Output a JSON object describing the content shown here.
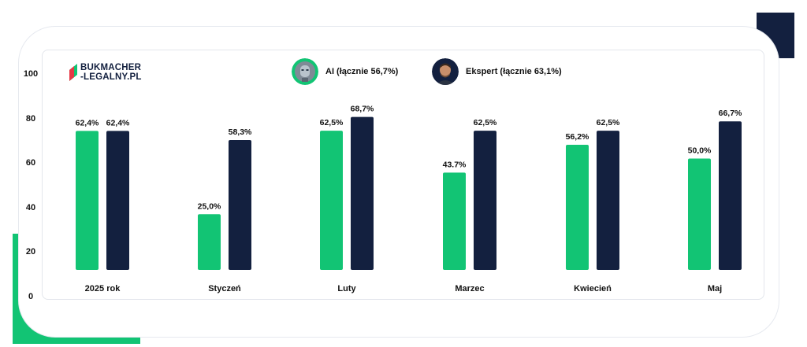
{
  "brand": {
    "line1": "BUKMACHER",
    "line2": "-LEGALNY.PL"
  },
  "legend": {
    "ai_label": "AI (łącznie 56,7%)",
    "expert_label": "Ekspert (łącznie 63,1%)"
  },
  "colors": {
    "ai": "#12c474",
    "expert": "#13203f",
    "navy_accent": "#13203f",
    "green_accent": "#12c474"
  },
  "chart_data": {
    "type": "bar",
    "categories": [
      "2025 rok",
      "Styczeń",
      "Luty",
      "Marzec",
      "Kwiecień",
      "Maj"
    ],
    "series": [
      {
        "name": "AI (łącznie 56,7%)",
        "values": [
          62.4,
          25.0,
          62.5,
          43.7,
          56.2,
          50.0
        ],
        "labels": [
          "62,4%",
          "25,0%",
          "62,5%",
          "43.7%",
          "56,2%",
          "50,0%"
        ]
      },
      {
        "name": "Ekspert (łącznie 63,1%)",
        "values": [
          62.4,
          58.3,
          68.7,
          62.5,
          62.5,
          66.7
        ],
        "labels": [
          "62,4%",
          "58,3%",
          "68,7%",
          "62,5%",
          "62,5%",
          "66,7%"
        ]
      }
    ],
    "y_ticks": [
      "0",
      "20",
      "40",
      "60",
      "80",
      "100"
    ],
    "ylim": [
      0,
      100
    ],
    "legend_position": "top",
    "grid": false
  }
}
